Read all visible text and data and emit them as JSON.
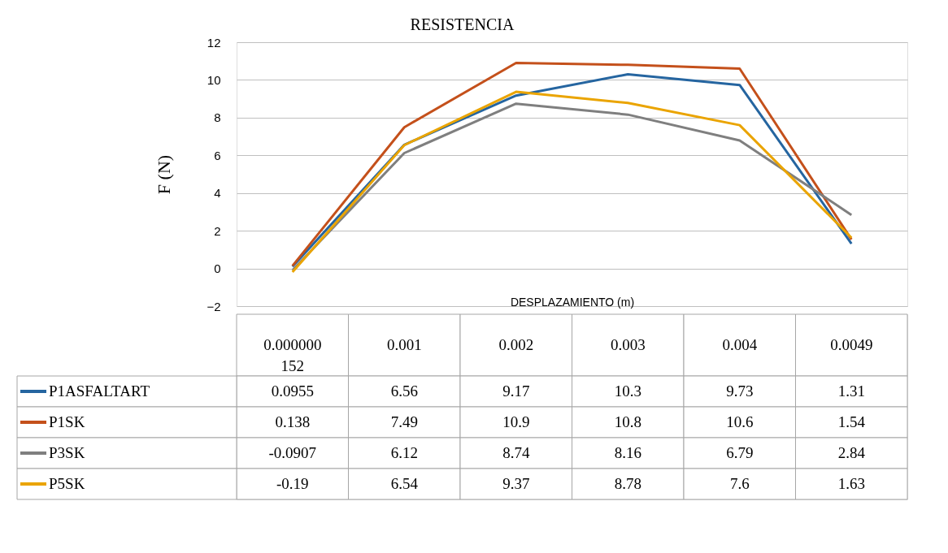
{
  "chart_data": {
    "type": "line",
    "title": "RESISTENCIA",
    "xlabel": "DESPLAZAMIENTO (m)",
    "ylabel": "F (N)",
    "categories": [
      "0.000000152",
      "0.001",
      "0.002",
      "0.003",
      "0.004",
      "0.0049"
    ],
    "series": [
      {
        "name": "P1ASFALTART",
        "color": "#2565a0",
        "values": [
          0.0955,
          6.56,
          9.17,
          10.3,
          9.73,
          1.31
        ]
      },
      {
        "name": "P1SK",
        "color": "#c4501b",
        "values": [
          0.138,
          7.49,
          10.9,
          10.8,
          10.6,
          1.54
        ]
      },
      {
        "name": "P3SK",
        "color": "#7f7f7f",
        "values": [
          -0.0907,
          6.12,
          8.74,
          8.16,
          6.79,
          2.84
        ]
      },
      {
        "name": "P5SK",
        "color": "#eaa400",
        "values": [
          -0.19,
          6.54,
          9.37,
          8.78,
          7.6,
          1.63
        ]
      }
    ],
    "ylim": [
      -2,
      12
    ],
    "yticks": [
      -2,
      0,
      2,
      4,
      6,
      8,
      10,
      12
    ],
    "grid": "y",
    "legend": "bottom",
    "data_labels": true,
    "marker": "none",
    "line_style": "solid"
  }
}
